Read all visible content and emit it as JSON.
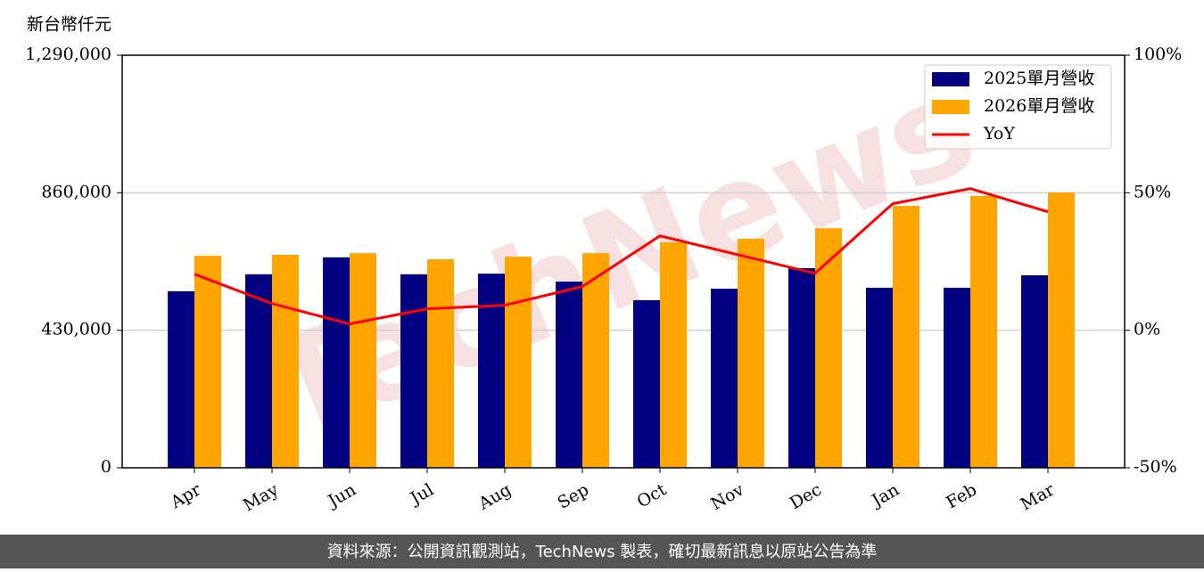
{
  "chart_data": {
    "type": "bar",
    "y_label": "新台幣仟元",
    "watermark": "TechNews",
    "footer": "資料來源：公開資訊觀測站，TechNews 製表，確切最新訊息以原站公告為準",
    "categories": [
      "Apr",
      "May",
      "Jun",
      "Jul",
      "Aug",
      "Sep",
      "Oct",
      "Nov",
      "Dec",
      "Jan",
      "Feb",
      "Mar"
    ],
    "series": [
      {
        "name": "2025單月營收",
        "color": "#000080",
        "type": "bar",
        "values": [
          552000,
          605000,
          658000,
          605000,
          607000,
          582000,
          524000,
          560000,
          624000,
          563000,
          563000,
          602000
        ]
      },
      {
        "name": "2026單月營收",
        "color": "#ffa500",
        "type": "bar",
        "values": [
          663000,
          666000,
          671000,
          652000,
          660000,
          671000,
          705000,
          716000,
          749000,
          819000,
          850000,
          861000
        ]
      },
      {
        "name": "YoY",
        "color": "#ff0000",
        "type": "line",
        "axis": "y2",
        "values": [
          20.4,
          9.7,
          2.3,
          7.8,
          9.1,
          15.9,
          34.3,
          27.5,
          20.7,
          46.0,
          51.5,
          43.1
        ]
      }
    ],
    "ylim": [
      0,
      1290000
    ],
    "yticks": [
      0,
      {
        "value": 430000,
        "label": "430,000"
      },
      {
        "value": 860000,
        "label": "860,000"
      },
      {
        "value": 1290000,
        "label": "1,290,000"
      }
    ],
    "y2lim": [
      -50,
      100
    ],
    "y2ticks": [
      {
        "value": -50,
        "label": "-50%"
      },
      {
        "value": 0,
        "label": "0%"
      },
      {
        "value": 50,
        "label": "50%"
      },
      {
        "value": 100,
        "label": "100%"
      }
    ],
    "grid": true,
    "legend": "upper right"
  }
}
